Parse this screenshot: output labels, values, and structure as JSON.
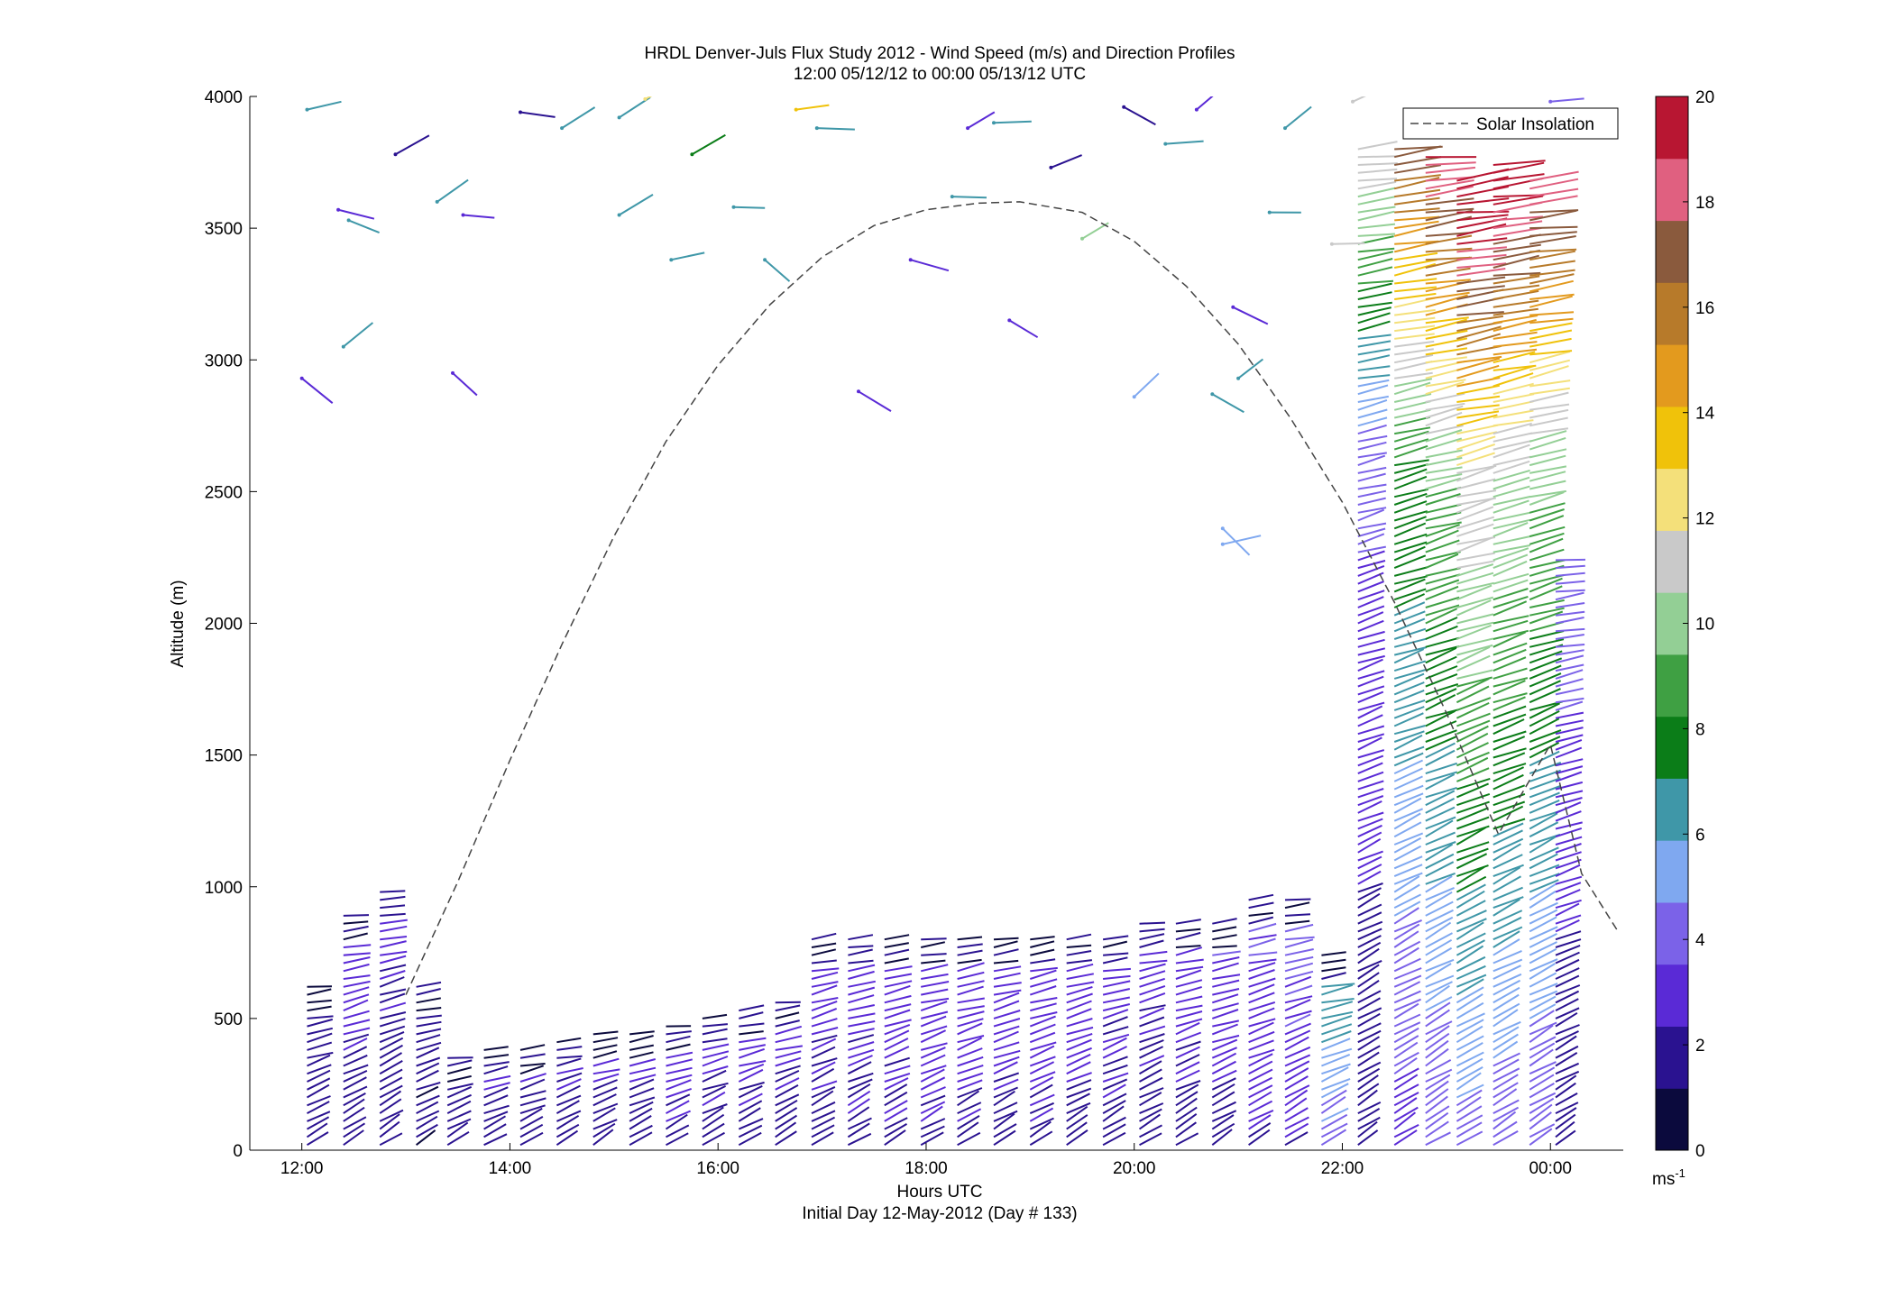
{
  "chart_data": {
    "type": "wind-barb-profile",
    "title": "HRDL Denver-Juls Flux Study 2012 - Wind Speed (m/s) and Direction Profiles",
    "subtitle": "12:00 05/12/12 to 00:00 05/13/12  UTC",
    "xlabel": "Hours UTC",
    "xlabel_note": "Initial Day 12-May-2012 (Day # 133)",
    "ylabel": "Altitude (m)",
    "xlim": [
      11.5,
      24.7
    ],
    "ylim": [
      0,
      4000
    ],
    "x_ticks": [
      {
        "value": 12,
        "label": "12:00"
      },
      {
        "value": 14,
        "label": "14:00"
      },
      {
        "value": 16,
        "label": "16:00"
      },
      {
        "value": 18,
        "label": "18:00"
      },
      {
        "value": 20,
        "label": "20:00"
      },
      {
        "value": 22,
        "label": "22:00"
      },
      {
        "value": 24,
        "label": "00:00"
      }
    ],
    "y_ticks": [
      0,
      500,
      1000,
      1500,
      2000,
      2500,
      3000,
      3500,
      4000
    ],
    "legend": {
      "label": "Solar Insolation",
      "position": "top-right",
      "style": "dashed"
    },
    "solar_insolation": {
      "x": [
        13.0,
        13.5,
        14.0,
        14.5,
        15.0,
        15.5,
        16.0,
        16.5,
        17.0,
        17.5,
        18.0,
        18.5,
        18.9,
        19.5,
        20.0,
        20.5,
        21.0,
        21.5,
        22.0,
        22.5,
        23.0,
        23.5,
        24.0,
        24.3,
        24.65
      ],
      "y": [
        590,
        1020,
        1480,
        1920,
        2330,
        2690,
        2980,
        3210,
        3390,
        3510,
        3570,
        3595,
        3600,
        3560,
        3450,
        3280,
        3060,
        2780,
        2460,
        2080,
        1660,
        1200,
        1540,
        1050,
        830
      ]
    },
    "colorbar": {
      "min": 0,
      "max": 20,
      "ticks": [
        0,
        2,
        4,
        6,
        8,
        10,
        12,
        14,
        16,
        18,
        20
      ],
      "unit_label": "ms",
      "unit_exponent": "-1",
      "colors": [
        "#0b0a3d",
        "#2a1290",
        "#5a2ad6",
        "#7b62e8",
        "#7fa8f0",
        "#3f97a8",
        "#0b7d18",
        "#3fa043",
        "#93cf95",
        "#c9c9c9",
        "#f4e07a",
        "#f0c20a",
        "#e39a1e",
        "#b77a2a",
        "#8a5a3d",
        "#e06080",
        "#b81632"
      ]
    },
    "profiles": [
      {
        "time": 12.05,
        "top": 620,
        "speed": 2.0
      },
      {
        "time": 12.4,
        "top": 900,
        "speed": 2.5
      },
      {
        "time": 12.75,
        "top": 1000,
        "speed": 2.5
      },
      {
        "time": 13.1,
        "top": 640,
        "speed": 1.5
      },
      {
        "time": 13.4,
        "top": 360,
        "speed": 2.3
      },
      {
        "time": 13.75,
        "top": 380,
        "speed": 2.4
      },
      {
        "time": 14.1,
        "top": 400,
        "speed": 2.4
      },
      {
        "time": 14.45,
        "top": 420,
        "speed": 2.5
      },
      {
        "time": 14.8,
        "top": 440,
        "speed": 2.5
      },
      {
        "time": 15.15,
        "top": 460,
        "speed": 2.5
      },
      {
        "time": 15.5,
        "top": 480,
        "speed": 2.6
      },
      {
        "time": 15.85,
        "top": 500,
        "speed": 2.6
      },
      {
        "time": 16.2,
        "top": 540,
        "speed": 2.6
      },
      {
        "time": 16.55,
        "top": 560,
        "speed": 2.6
      },
      {
        "time": 16.9,
        "top": 820,
        "speed": 2.5
      },
      {
        "time": 17.25,
        "top": 800,
        "speed": 2.7
      },
      {
        "time": 17.6,
        "top": 800,
        "speed": 2.8
      },
      {
        "time": 17.95,
        "top": 800,
        "speed": 3.0
      },
      {
        "time": 18.3,
        "top": 820,
        "speed": 3.0
      },
      {
        "time": 18.65,
        "top": 820,
        "speed": 2.8
      },
      {
        "time": 19.0,
        "top": 820,
        "speed": 2.8
      },
      {
        "time": 19.35,
        "top": 800,
        "speed": 2.7
      },
      {
        "time": 19.7,
        "top": 820,
        "speed": 2.6
      },
      {
        "time": 20.05,
        "top": 880,
        "speed": 2.6
      },
      {
        "time": 20.4,
        "top": 880,
        "speed": 2.7
      },
      {
        "time": 20.75,
        "top": 880,
        "speed": 3.0
      },
      {
        "time": 21.1,
        "top": 960,
        "speed": 3.2
      },
      {
        "time": 21.45,
        "top": 960,
        "speed": 3.5
      },
      {
        "time": 21.8,
        "top": 760,
        "speed": 6.0
      },
      {
        "time": 22.15,
        "top": 3800,
        "speed": 4.0
      },
      {
        "time": 22.5,
        "top": 3820,
        "speed": 8.5
      },
      {
        "time": 22.8,
        "top": 3780,
        "speed": 10.0
      },
      {
        "time": 23.1,
        "top": 3700,
        "speed": 12.0
      },
      {
        "time": 23.45,
        "top": 3750,
        "speed": 11.0
      },
      {
        "time": 23.8,
        "top": 3700,
        "speed": 10.0
      },
      {
        "time": 24.05,
        "top": 2250,
        "speed": 3.5
      }
    ],
    "scattered_barbs": [
      {
        "time": 12.05,
        "alt": 3950,
        "speed": 7.0
      },
      {
        "time": 12.35,
        "alt": 3570,
        "speed": 3.5
      },
      {
        "time": 12.45,
        "alt": 3530,
        "speed": 6.5
      },
      {
        "time": 12.4,
        "alt": 3050,
        "speed": 6.5
      },
      {
        "time": 12.9,
        "alt": 3780,
        "speed": 2.0
      },
      {
        "time": 13.3,
        "alt": 3600,
        "speed": 6.5
      },
      {
        "time": 13.55,
        "alt": 3550,
        "speed": 3.5
      },
      {
        "time": 14.1,
        "alt": 3940,
        "speed": 1.5
      },
      {
        "time": 14.5,
        "alt": 3880,
        "speed": 6.0
      },
      {
        "time": 15.05,
        "alt": 3920,
        "speed": 6.5
      },
      {
        "time": 15.3,
        "alt": 3990,
        "speed": 12.0
      },
      {
        "time": 15.75,
        "alt": 3780,
        "speed": 7.5
      },
      {
        "time": 15.05,
        "alt": 3550,
        "speed": 7.0
      },
      {
        "time": 15.55,
        "alt": 3380,
        "speed": 6.5
      },
      {
        "time": 16.15,
        "alt": 3580,
        "speed": 6.5
      },
      {
        "time": 16.45,
        "alt": 3380,
        "speed": 6.5
      },
      {
        "time": 16.75,
        "alt": 3950,
        "speed": 13.5
      },
      {
        "time": 16.95,
        "alt": 3880,
        "speed": 6.0
      },
      {
        "time": 17.35,
        "alt": 2880,
        "speed": 3.0
      },
      {
        "time": 17.85,
        "alt": 3380,
        "speed": 3.0
      },
      {
        "time": 18.25,
        "alt": 3620,
        "speed": 6.0
      },
      {
        "time": 18.4,
        "alt": 3880,
        "speed": 3.5
      },
      {
        "time": 18.65,
        "alt": 3900,
        "speed": 6.5
      },
      {
        "time": 18.8,
        "alt": 3150,
        "speed": 3.5
      },
      {
        "time": 19.2,
        "alt": 3730,
        "speed": 2.0
      },
      {
        "time": 19.5,
        "alt": 3460,
        "speed": 9.5
      },
      {
        "time": 19.9,
        "alt": 3960,
        "speed": 1.5
      },
      {
        "time": 20.3,
        "alt": 3820,
        "speed": 6.5
      },
      {
        "time": 20.6,
        "alt": 3950,
        "speed": 2.5
      },
      {
        "time": 20.95,
        "alt": 3200,
        "speed": 3.0
      },
      {
        "time": 21.0,
        "alt": 2930,
        "speed": 6.5
      },
      {
        "time": 21.3,
        "alt": 3560,
        "speed": 6.5
      },
      {
        "time": 21.45,
        "alt": 3880,
        "speed": 6.5
      },
      {
        "time": 21.9,
        "alt": 3440,
        "speed": 11.5
      },
      {
        "time": 20.75,
        "alt": 2870,
        "speed": 6.0
      },
      {
        "time": 20.0,
        "alt": 2860,
        "speed": 5.0
      },
      {
        "time": 20.85,
        "alt": 2360,
        "speed": 5.0
      },
      {
        "time": 20.85,
        "alt": 2300,
        "speed": 5.0
      },
      {
        "time": 13.45,
        "alt": 2950,
        "speed": 3.5
      },
      {
        "time": 12.0,
        "alt": 2930,
        "speed": 3.0
      },
      {
        "time": 24.0,
        "alt": 3980,
        "speed": 4.0
      },
      {
        "time": 22.1,
        "alt": 3980,
        "speed": 11.0
      }
    ]
  }
}
